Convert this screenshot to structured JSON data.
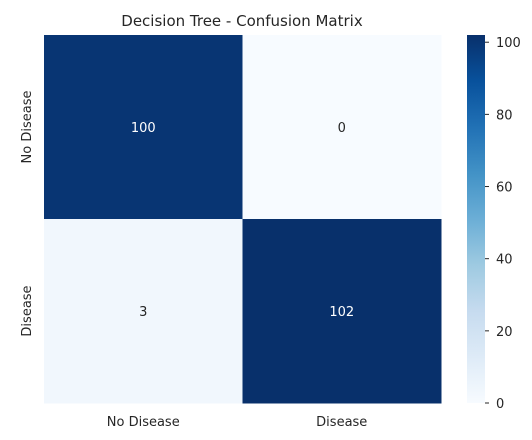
{
  "chart_data": {
    "type": "heatmap",
    "title": "Decision Tree - Confusion Matrix",
    "xlabel": "",
    "ylabel": "",
    "x_categories": [
      "No Disease",
      "Disease"
    ],
    "y_categories": [
      "No Disease",
      "Disease"
    ],
    "values": [
      [
        100,
        0
      ],
      [
        3,
        102
      ]
    ],
    "annotations": [
      [
        "100",
        "0"
      ],
      [
        "3",
        "102"
      ]
    ],
    "colorbar": {
      "min": 0,
      "max": 102,
      "ticks": [
        0,
        20,
        40,
        60,
        80,
        100
      ],
      "colormap": "Blues",
      "low_color": "#f7fbff",
      "high_color": "#08306b"
    },
    "grid": false,
    "legend": "right"
  }
}
